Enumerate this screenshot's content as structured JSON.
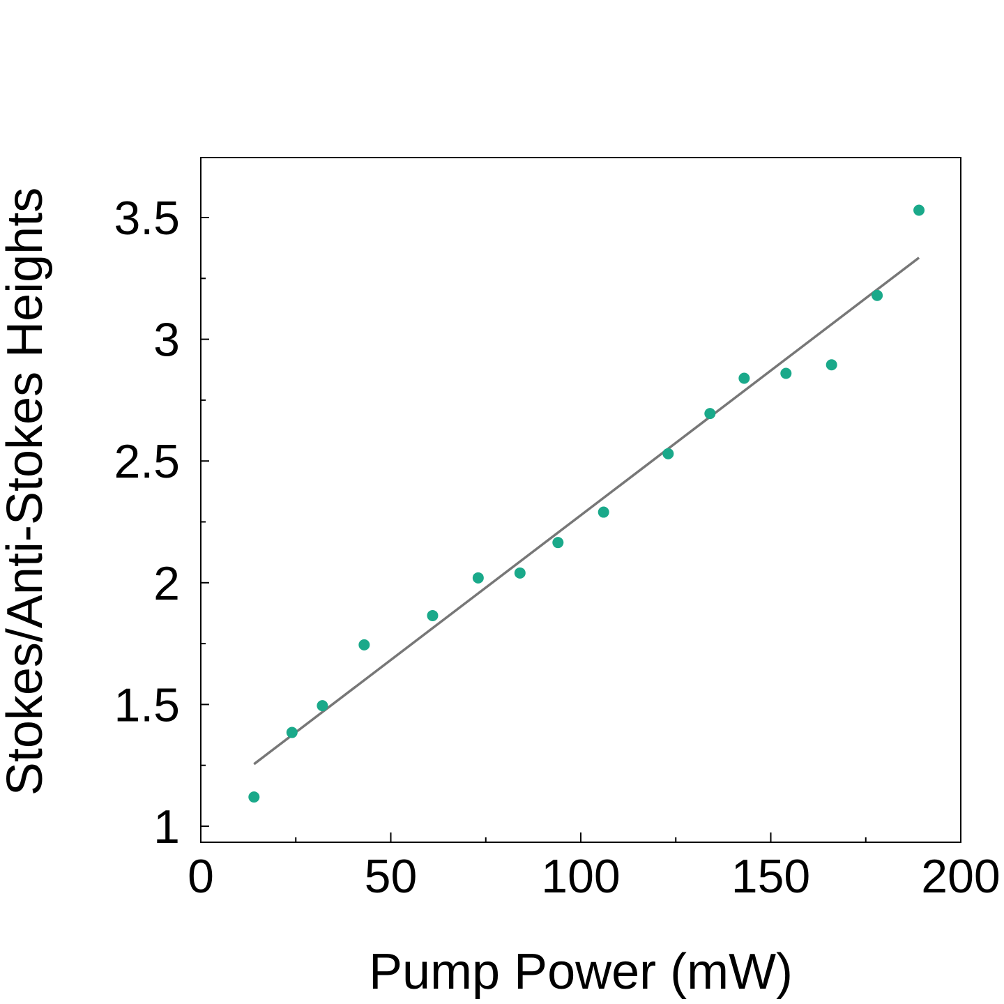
{
  "chart_data": {
    "type": "scatter",
    "xlabel": "Pump Power (mW)",
    "ylabel": "Stokes/Anti-Stokes Heights",
    "xlim": [
      0,
      200
    ],
    "ylim": [
      1,
      3.75
    ],
    "xticks": [
      0,
      50,
      100,
      150,
      200
    ],
    "xtick_labels": [
      "0",
      "50",
      "100",
      "150",
      "200"
    ],
    "yticks": [
      1,
      1.5,
      2,
      2.5,
      3,
      3.5
    ],
    "ytick_labels": [
      "1",
      "1.5",
      "2",
      "2.5",
      "3",
      "3.5"
    ],
    "x_minor_ticks": [
      25,
      75,
      125,
      175
    ],
    "y_minor_ticks": [
      1.25,
      1.75,
      2.25,
      2.75,
      3.25
    ],
    "grid": false,
    "series": [
      {
        "type": "scatter",
        "color": "#1aa98a",
        "x": [
          14,
          24,
          32,
          43,
          61,
          73,
          84,
          94,
          106,
          123,
          134,
          143,
          154,
          166,
          178,
          189
        ],
        "y": [
          1.12,
          1.385,
          1.495,
          1.745,
          1.865,
          2.02,
          2.04,
          2.165,
          2.29,
          2.53,
          2.695,
          2.84,
          2.86,
          2.895,
          3.18,
          3.53
        ]
      },
      {
        "type": "line",
        "color": "#777777",
        "x": [
          14,
          189
        ],
        "y": [
          1.255,
          3.335
        ]
      }
    ]
  }
}
